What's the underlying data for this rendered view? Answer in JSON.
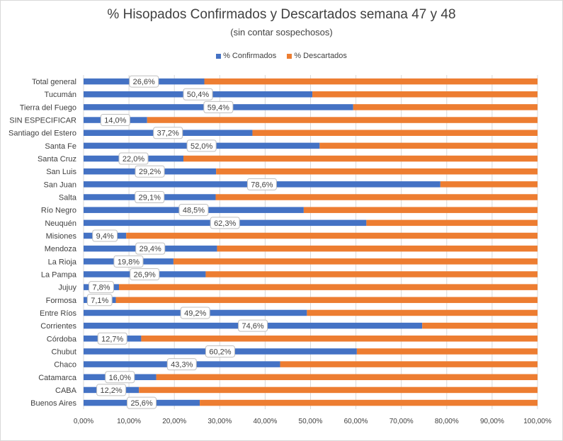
{
  "chart_data": {
    "type": "bar",
    "orientation": "horizontal",
    "stacked": true,
    "title": "% Hisopados Confirmados y Descartados semana 47 y 48",
    "subtitle": "(sin contar sospechosos)",
    "xlim": [
      0,
      100
    ],
    "grid": true,
    "legend_position": "top",
    "x_ticks": [
      "0,00%",
      "10,00%",
      "20,00%",
      "30,00%",
      "40,00%",
      "50,00%",
      "60,00%",
      "70,00%",
      "80,00%",
      "90,00%",
      "100,00%"
    ],
    "categories": [
      "Total general",
      "Tucumán",
      "Tierra del Fuego",
      "SIN ESPECIFICAR",
      "Santiago del Estero",
      "Santa Fe",
      "Santa Cruz",
      "San Luis",
      "San Juan",
      "Salta",
      "Río Negro",
      "Neuquén",
      "Misiones",
      "Mendoza",
      "La Rioja",
      "La Pampa",
      "Jujuy",
      "Formosa",
      "Entre Ríos",
      "Corrientes",
      "Córdoba",
      "Chubut",
      "Chaco",
      "Catamarca",
      "CABA",
      "Buenos Aires"
    ],
    "series": [
      {
        "name": "% Confirmados",
        "color": "#4472c4",
        "values": [
          26.6,
          50.4,
          59.4,
          14.0,
          37.2,
          52.0,
          22.0,
          29.2,
          78.6,
          29.1,
          48.5,
          62.3,
          9.4,
          29.4,
          19.8,
          26.9,
          7.8,
          7.1,
          49.2,
          74.6,
          12.7,
          60.2,
          43.3,
          16.0,
          12.2,
          25.6
        ],
        "labels": [
          "26,6%",
          "50,4%",
          "59,4%",
          "14,0%",
          "37,2%",
          "52,0%",
          "22,0%",
          "29,2%",
          "78,6%",
          "29,1%",
          "48,5%",
          "62,3%",
          "9,4%",
          "29,4%",
          "19,8%",
          "26,9%",
          "7,8%",
          "7,1%",
          "49,2%",
          "74,6%",
          "12,7%",
          "60,2%",
          "43,3%",
          "16,0%",
          "12,2%",
          "25,6%"
        ]
      },
      {
        "name": "% Descartados",
        "color": "#ed7d31",
        "values": [
          73.4,
          49.6,
          40.6,
          86.0,
          62.8,
          48.0,
          78.0,
          70.8,
          21.4,
          70.9,
          51.5,
          37.7,
          90.6,
          70.6,
          80.2,
          73.1,
          92.2,
          92.9,
          50.8,
          25.4,
          87.3,
          39.8,
          56.7,
          84.0,
          87.8,
          74.4
        ]
      }
    ]
  }
}
